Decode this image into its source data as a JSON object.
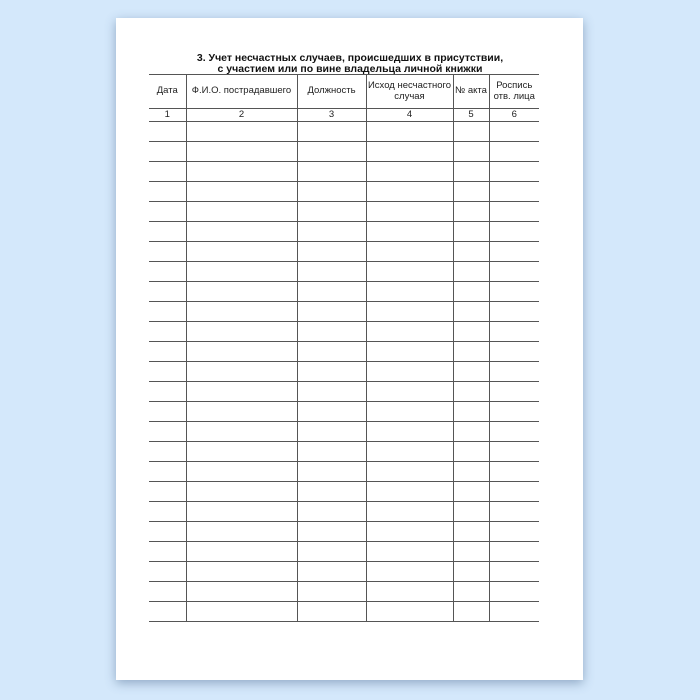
{
  "document": {
    "title_line1": "3. Учет несчастных случаев, происшедших в присутствии,",
    "title_line2": "с участием или по вине владельца личной книжки",
    "columns": [
      {
        "header": "Дата",
        "number": "1"
      },
      {
        "header": "Ф.И.О. пострадавшего",
        "number": "2"
      },
      {
        "header": "Должность",
        "number": "3"
      },
      {
        "header": "Исход несчастного случая",
        "number": "4"
      },
      {
        "header": "№ акта",
        "number": "5"
      },
      {
        "header": "Роспись отв. лица",
        "number": "6"
      }
    ],
    "empty_rows": 25
  }
}
